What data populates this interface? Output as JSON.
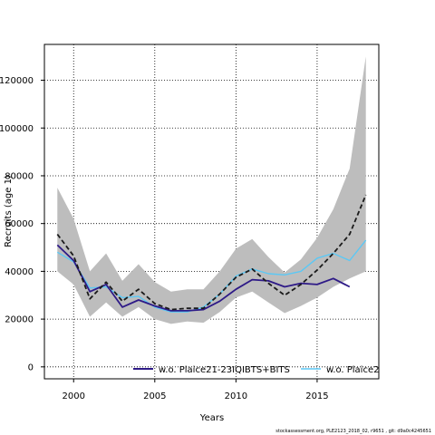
{
  "chart_data": {
    "type": "line",
    "xlabel": "Years",
    "ylabel": "Recruits (age 1)",
    "xlim": [
      1998.2,
      2018.8
    ],
    "ylim": [
      -5000,
      135000
    ],
    "xticks": [
      2000,
      2005,
      2010,
      2015
    ],
    "yticks": [
      0,
      20000,
      40000,
      60000,
      80000,
      100000,
      120000
    ],
    "grid": true,
    "legend_position": "bottom",
    "confidence_band": {
      "x": [
        1999,
        2000,
        2001,
        2002,
        2003,
        2004,
        2005,
        2006,
        2007,
        2008,
        2009,
        2010,
        2011,
        2012,
        2013,
        2014,
        2015,
        2016,
        2017,
        2018
      ],
      "upper": [
        75000,
        62000,
        40000,
        47500,
        36000,
        43000,
        35500,
        31500,
        32500,
        32500,
        40000,
        49500,
        53500,
        46000,
        39500,
        45000,
        54000,
        66000,
        83000,
        130000
      ],
      "lower": [
        40000,
        34500,
        21000,
        27000,
        21000,
        25000,
        20000,
        18000,
        19000,
        18500,
        23000,
        29000,
        31500,
        27000,
        22500,
        25500,
        29000,
        33500,
        37000,
        40000
      ]
    },
    "series": [
      {
        "style": "dashed",
        "color": "#1a1a1a",
        "x": [
          1999,
          2000,
          2001,
          2002,
          2003,
          2004,
          2005,
          2006,
          2007,
          2008,
          2009,
          2010,
          2011,
          2012,
          2013,
          2014,
          2015,
          2016,
          2017,
          2018
        ],
        "values": [
          55500,
          46500,
          28500,
          35500,
          27500,
          32500,
          26500,
          24000,
          24500,
          24500,
          30500,
          37500,
          41000,
          35000,
          30000,
          34500,
          40500,
          47500,
          55500,
          72000
        ]
      },
      {
        "name": "w.o. Plaice21-23IQIBTS+BITS",
        "color": "#2e1a87",
        "x": [
          1999,
          2000,
          2001,
          2002,
          2003,
          2004,
          2005,
          2006,
          2007,
          2008,
          2009,
          2010,
          2011,
          2012,
          2013,
          2014,
          2015,
          2016,
          2017
        ],
        "values": [
          51000,
          44500,
          31500,
          34500,
          25000,
          28000,
          25500,
          23500,
          23500,
          24000,
          27500,
          32500,
          36500,
          36000,
          33500,
          35000,
          34500,
          37000,
          33500
        ]
      },
      {
        "name": "w.o. Plaice2",
        "color": "#5bc8f5",
        "x": [
          1999,
          2000,
          2001,
          2002,
          2003,
          2004,
          2005,
          2006,
          2007,
          2008,
          2009,
          2010,
          2011,
          2012,
          2013,
          2014,
          2015,
          2016,
          2017,
          2018
        ],
        "values": [
          48000,
          44000,
          33000,
          33500,
          29000,
          29500,
          25000,
          23000,
          23000,
          25000,
          30500,
          38000,
          41000,
          39000,
          38500,
          40000,
          45500,
          47500,
          44500,
          53000
        ]
      }
    ]
  },
  "footer": "stockassessment.org, PLE2123_2018_02, r9651 , git: d9a0c4245651"
}
